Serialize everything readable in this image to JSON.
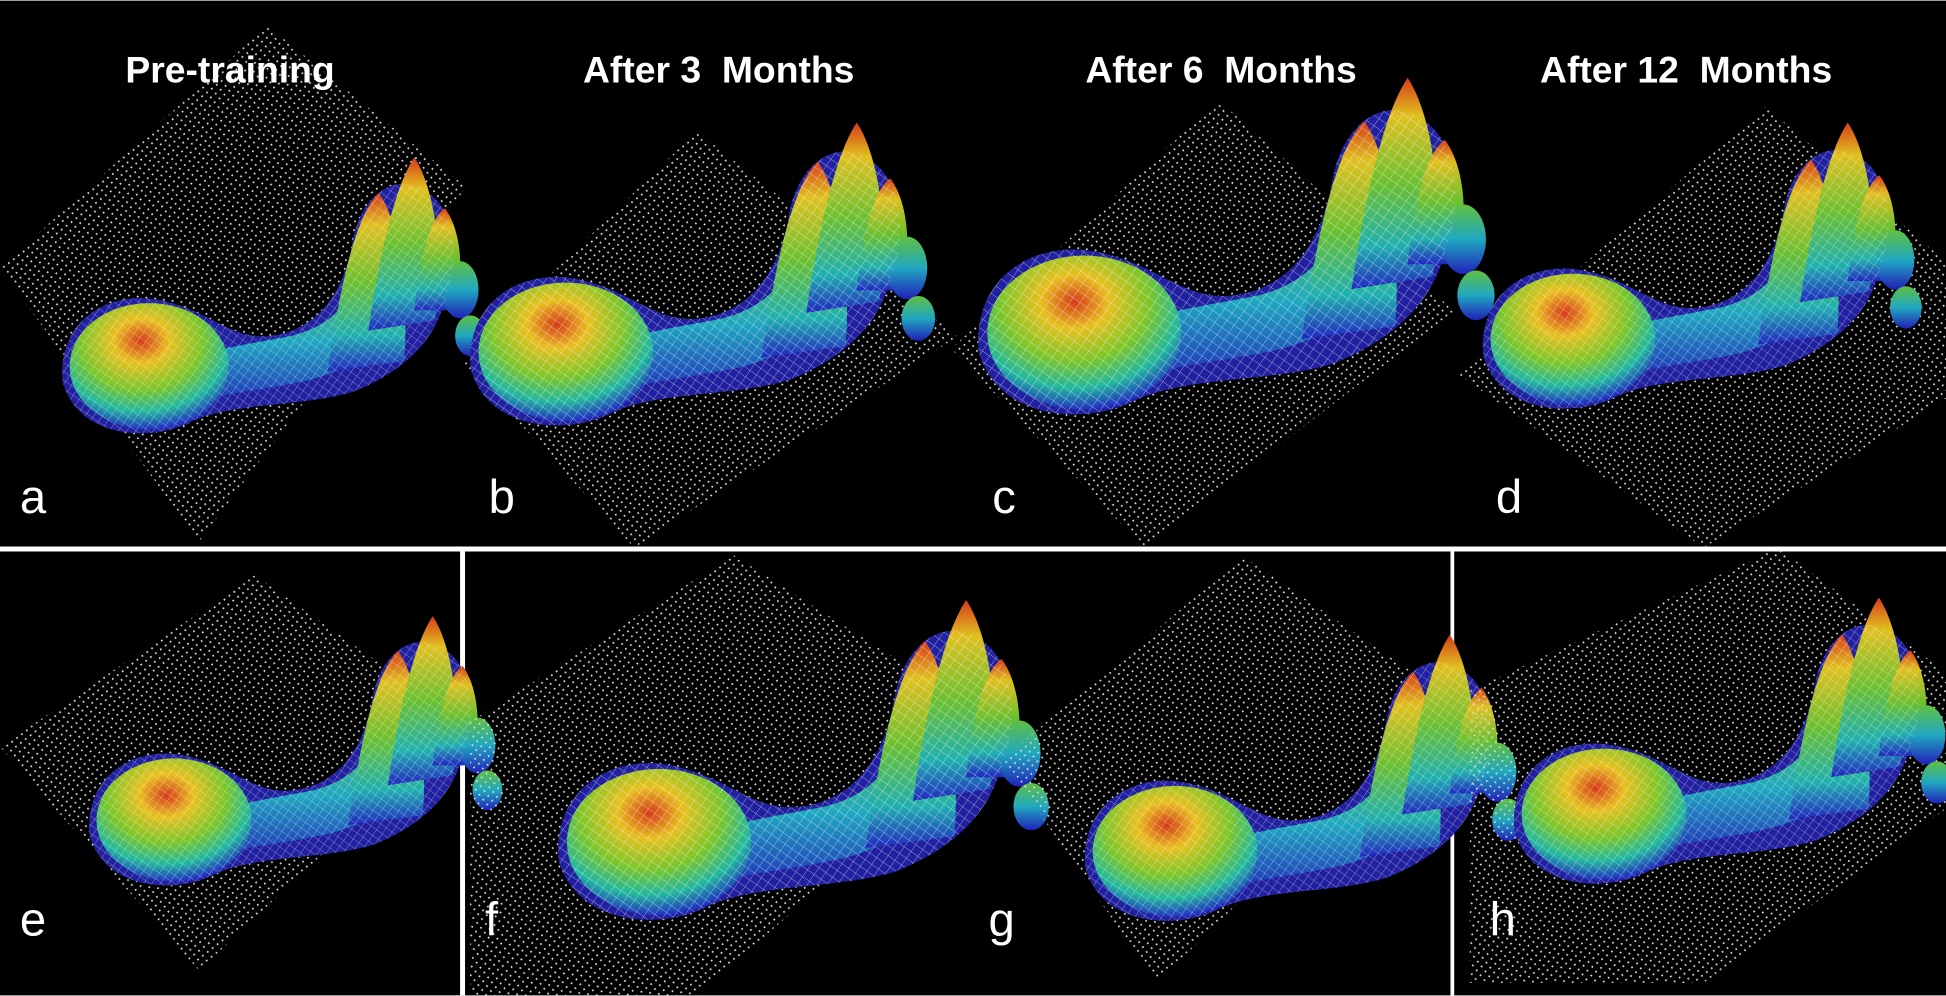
{
  "figure": {
    "titles": [
      "Pre-training",
      "After 3  Months",
      "After 6  Months",
      "After 12  Months"
    ],
    "panel_labels": [
      "a",
      "b",
      "c",
      "d",
      "e",
      "f",
      "g",
      "h"
    ]
  }
}
